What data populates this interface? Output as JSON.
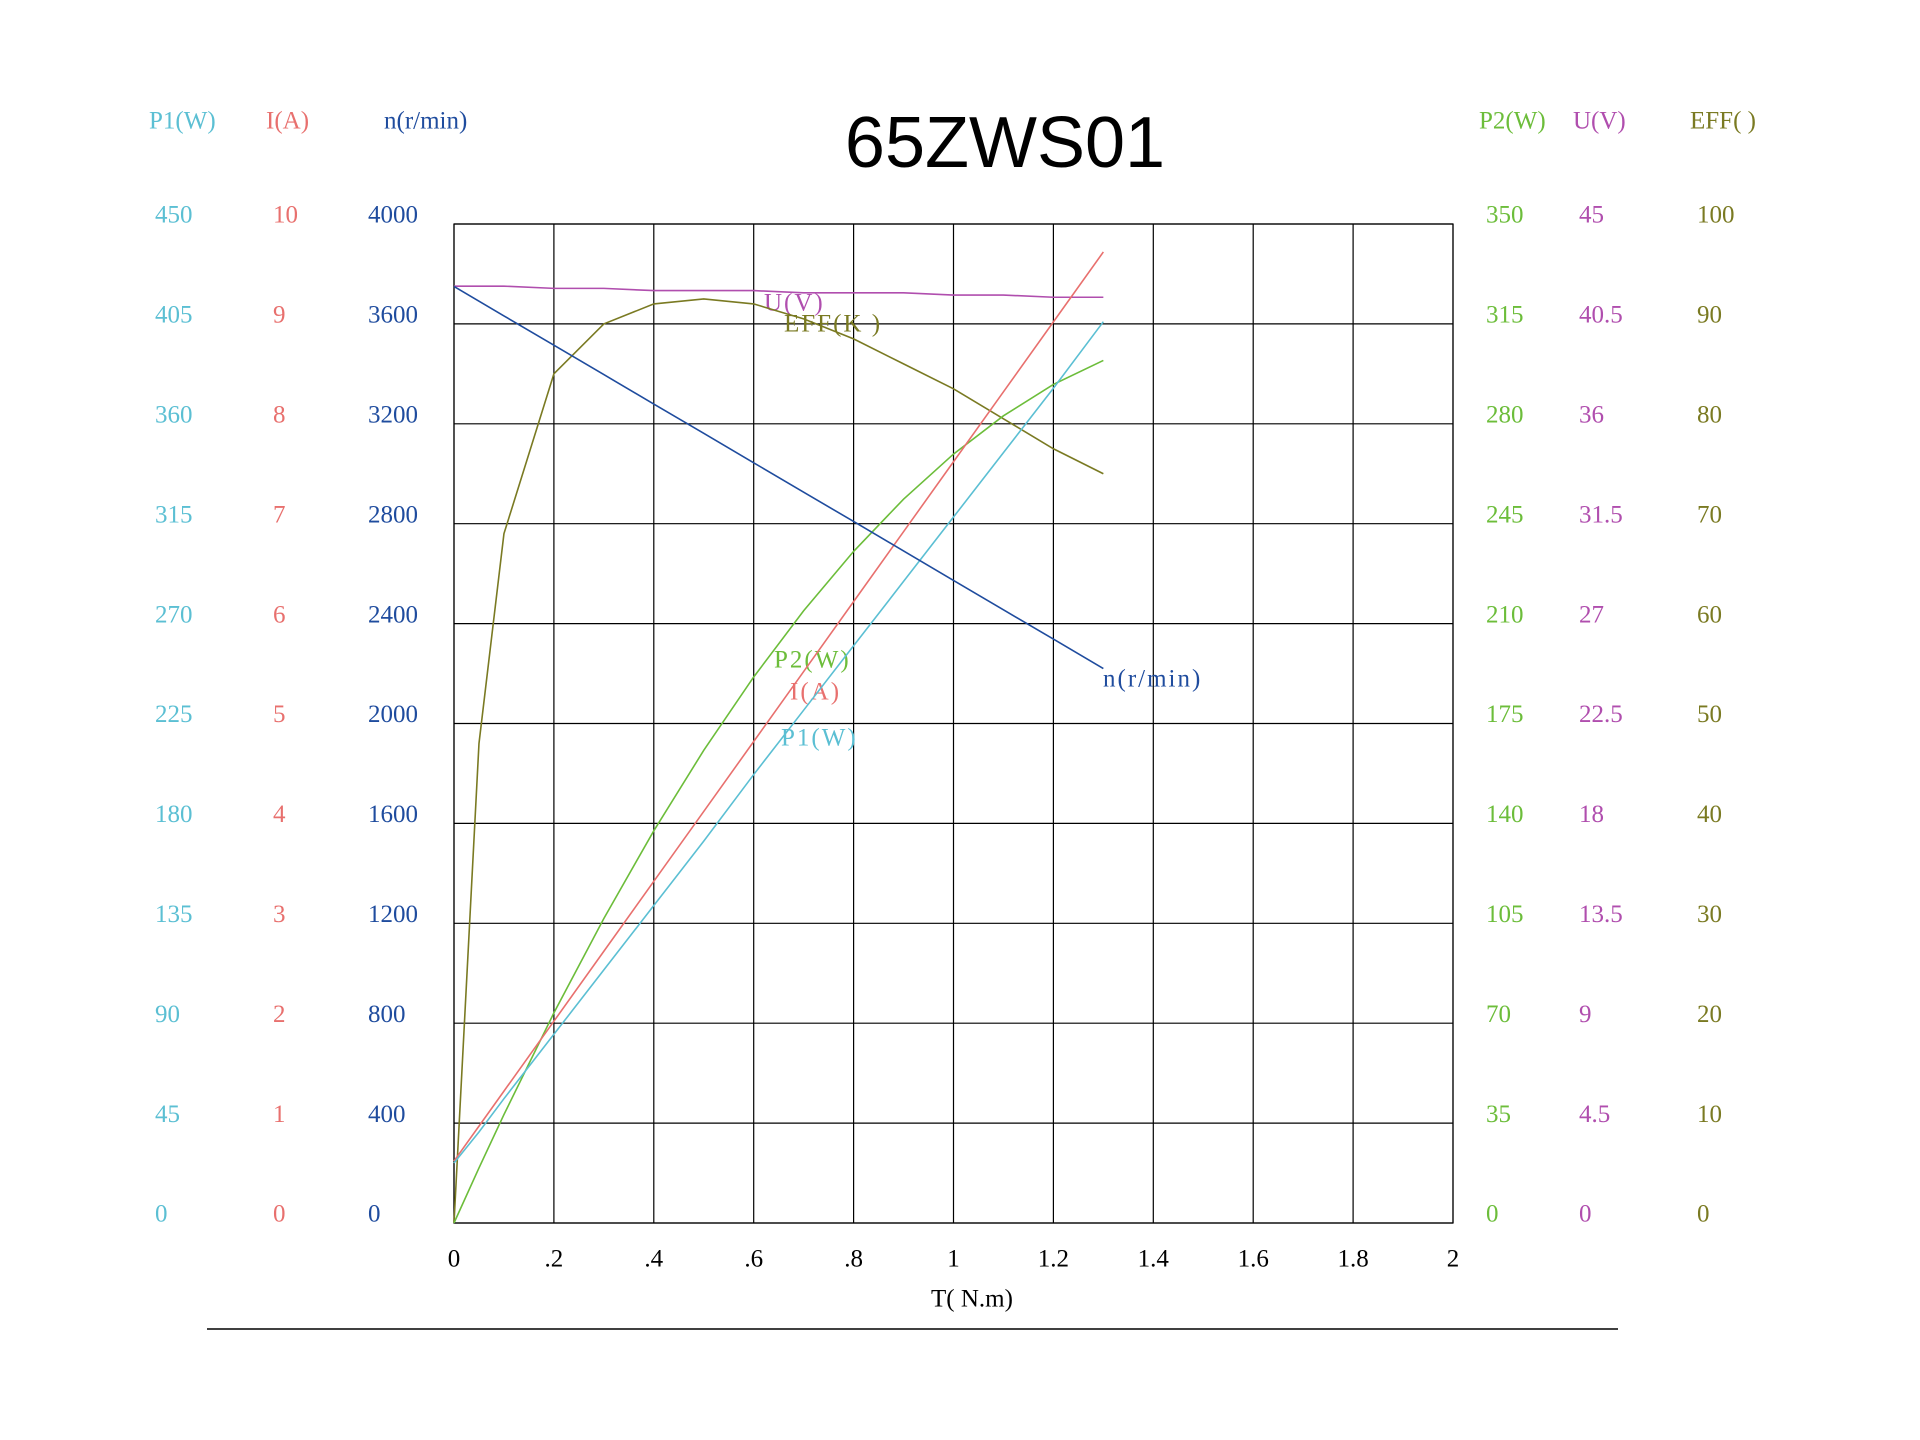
{
  "chart_data": {
    "type": "line",
    "title": "65ZWS01",
    "xlabel": "T( N.m)",
    "x": [
      0,
      0.05,
      0.1,
      0.2,
      0.3,
      0.4,
      0.5,
      0.6,
      0.7,
      0.8,
      0.9,
      1.0,
      1.1,
      1.2,
      1.3
    ],
    "xlim": [
      0,
      2
    ],
    "xticks": [
      0,
      {
        "value": 0.2,
        "label": ".2"
      },
      {
        "value": 0.4,
        "label": ".4"
      },
      {
        "value": 0.6,
        "label": ".6"
      },
      {
        "value": 0.8,
        "label": ".8"
      },
      1,
      1.2,
      1.4,
      1.6,
      1.8,
      2
    ],
    "grid": true,
    "yaxes": [
      {
        "title": "P1(W)",
        "color": "#5bbfd3",
        "side": "left",
        "lim": [
          0,
          450
        ],
        "ticks": [
          0,
          45,
          90,
          135,
          180,
          225,
          270,
          315,
          360,
          405,
          450
        ]
      },
      {
        "title": "I(A)",
        "color": "#e8706e",
        "side": "left",
        "lim": [
          0,
          10
        ],
        "ticks": [
          0,
          1,
          2,
          3,
          4,
          5,
          6,
          7,
          8,
          9,
          10
        ]
      },
      {
        "title": "n(r/min)",
        "color": "#1f4c9e",
        "side": "left",
        "lim": [
          0,
          4000
        ],
        "ticks": [
          0,
          400,
          800,
          1200,
          1600,
          2000,
          2400,
          2800,
          3200,
          3600,
          4000
        ]
      },
      {
        "title": "P2(W)",
        "color": "#6cbd3a",
        "side": "right",
        "lim": [
          0,
          350
        ],
        "ticks": [
          0,
          35,
          70,
          105,
          140,
          175,
          210,
          245,
          280,
          315,
          350
        ]
      },
      {
        "title": "U(V)",
        "color": "#b04eae",
        "side": "right",
        "lim": [
          0,
          45
        ],
        "ticks": [
          0,
          4.5,
          9,
          13.5,
          18,
          22.5,
          27,
          31.5,
          36,
          40.5,
          45
        ]
      },
      {
        "title": "EFF(   )",
        "color": "#7a7a22",
        "side": "right",
        "lim": [
          0,
          100
        ],
        "ticks": [
          0,
          10,
          20,
          30,
          40,
          50,
          60,
          70,
          80,
          90,
          100
        ]
      }
    ],
    "series": [
      {
        "name": "U(V)",
        "axis": 4,
        "color": "#b04eae",
        "values": [
          42.2,
          42.2,
          42.2,
          42.1,
          42.1,
          42.0,
          42.0,
          42.0,
          41.9,
          41.9,
          41.9,
          41.8,
          41.8,
          41.7,
          41.7
        ]
      },
      {
        "name": "EFF(K )",
        "axis": 5,
        "color": "#7a7a22",
        "values": [
          0,
          48,
          69,
          85,
          90,
          92,
          92.5,
          92,
          90.5,
          88.5,
          86,
          83.5,
          80.5,
          77.5,
          75
        ]
      },
      {
        "name": "P2(W)",
        "axis": 3,
        "color": "#6cbd3a",
        "values": [
          0,
          19.3,
          38.0,
          73.6,
          106.7,
          137.4,
          165.6,
          191.3,
          214.5,
          235.3,
          253.6,
          269.4,
          282.8,
          293.8,
          302.2
        ]
      },
      {
        "name": "I(A)",
        "axis": 1,
        "color": "#e8706e",
        "values": [
          0.62,
          0.97,
          1.32,
          2.02,
          2.72,
          3.42,
          4.12,
          4.82,
          5.52,
          6.22,
          6.92,
          7.62,
          8.32,
          9.02,
          9.72
        ]
      },
      {
        "name": "P1(W)",
        "axis": 0,
        "color": "#5bbfd3",
        "values": [
          27,
          41,
          56,
          85,
          114,
          143,
          172,
          202,
          231,
          260,
          289,
          318,
          347,
          376,
          406
        ]
      },
      {
        "name": "n(r/min)",
        "axis": 2,
        "color": "#1f4c9e",
        "values": [
          3750,
          3691,
          3632,
          3515,
          3397,
          3279,
          3162,
          3044,
          2926,
          2809,
          2691,
          2573,
          2455,
          2338,
          2220
        ]
      }
    ]
  }
}
